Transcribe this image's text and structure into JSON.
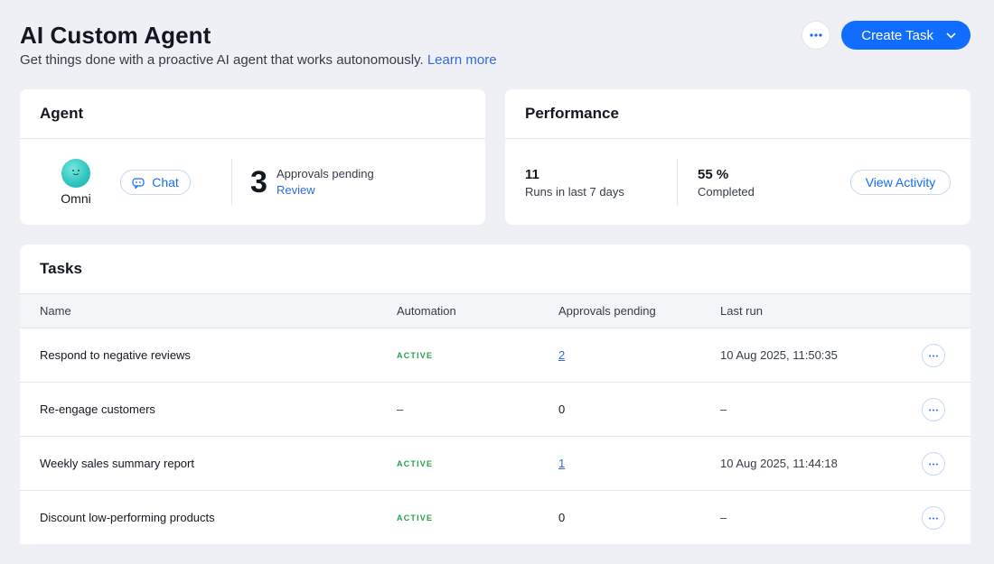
{
  "header": {
    "title": "AI Custom Agent",
    "subtitle": "Get things done with a proactive AI agent that works autonomously.",
    "learn_more": "Learn more",
    "more_icon": "ellipsis-icon",
    "create_task_label": "Create Task"
  },
  "agent": {
    "title": "Agent",
    "name": "Omni",
    "chat_label": "Chat",
    "approvals_count": "3",
    "approvals_label": "Approvals pending",
    "review_label": "Review"
  },
  "performance": {
    "title": "Performance",
    "runs_value": "11",
    "runs_label": "Runs in last 7 days",
    "completed_value": "55 %",
    "completed_label": "Completed",
    "view_activity_label": "View Activity"
  },
  "tasks": {
    "title": "Tasks",
    "columns": {
      "name": "Name",
      "automation": "Automation",
      "approvals": "Approvals pending",
      "last_run": "Last run"
    },
    "rows": [
      {
        "name": "Respond to negative reviews",
        "automation": "ACTIVE",
        "approvals": "2",
        "last_run": "10 Aug 2025, 11:50:35"
      },
      {
        "name": "Re-engage customers",
        "automation": "–",
        "approvals": "0",
        "last_run": "–"
      },
      {
        "name": "Weekly sales summary report",
        "automation": "ACTIVE",
        "approvals": "1",
        "last_run": "10 Aug 2025, 11:44:18"
      },
      {
        "name": "Discount low-performing products",
        "automation": "ACTIVE",
        "approvals": "0",
        "last_run": "–"
      }
    ]
  },
  "colors": {
    "accent": "#116dff",
    "link": "#2f6bdf",
    "active": "#24a148",
    "background": "#eef0f5"
  }
}
